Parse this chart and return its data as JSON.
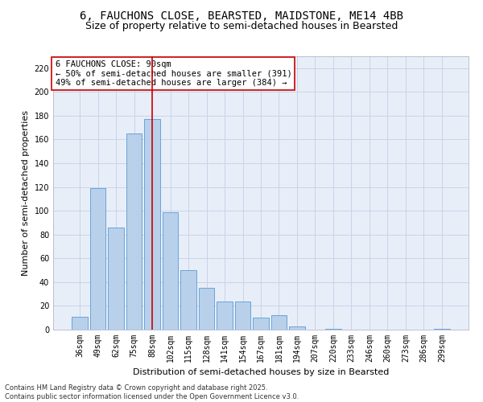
{
  "title_line1": "6, FAUCHONS CLOSE, BEARSTED, MAIDSTONE, ME14 4BB",
  "title_line2": "Size of property relative to semi-detached houses in Bearsted",
  "xlabel": "Distribution of semi-detached houses by size in Bearsted",
  "ylabel": "Number of semi-detached properties",
  "categories": [
    "36sqm",
    "49sqm",
    "62sqm",
    "75sqm",
    "88sqm",
    "102sqm",
    "115sqm",
    "128sqm",
    "141sqm",
    "154sqm",
    "167sqm",
    "181sqm",
    "194sqm",
    "207sqm",
    "220sqm",
    "233sqm",
    "246sqm",
    "260sqm",
    "273sqm",
    "286sqm",
    "299sqm"
  ],
  "values": [
    11,
    119,
    86,
    165,
    177,
    99,
    50,
    35,
    24,
    24,
    10,
    12,
    3,
    0,
    1,
    0,
    0,
    0,
    0,
    0,
    1
  ],
  "bar_color": "#b8d0ea",
  "bar_edge_color": "#5b9bd5",
  "vline_x_index": 4,
  "vline_color": "#cc0000",
  "annotation_text": "6 FAUCHONS CLOSE: 90sqm\n← 50% of semi-detached houses are smaller (391)\n49% of semi-detached houses are larger (384) →",
  "annotation_box_edge": "#cc0000",
  "ylim": [
    0,
    230
  ],
  "yticks": [
    0,
    20,
    40,
    60,
    80,
    100,
    120,
    140,
    160,
    180,
    200,
    220
  ],
  "grid_color": "#c8d4e8",
  "background_color": "#e8eef8",
  "footer_line1": "Contains HM Land Registry data © Crown copyright and database right 2025.",
  "footer_line2": "Contains public sector information licensed under the Open Government Licence v3.0.",
  "title_fontsize": 10,
  "subtitle_fontsize": 9,
  "axis_label_fontsize": 8,
  "tick_fontsize": 7,
  "annotation_fontsize": 7.5,
  "footer_fontsize": 6
}
